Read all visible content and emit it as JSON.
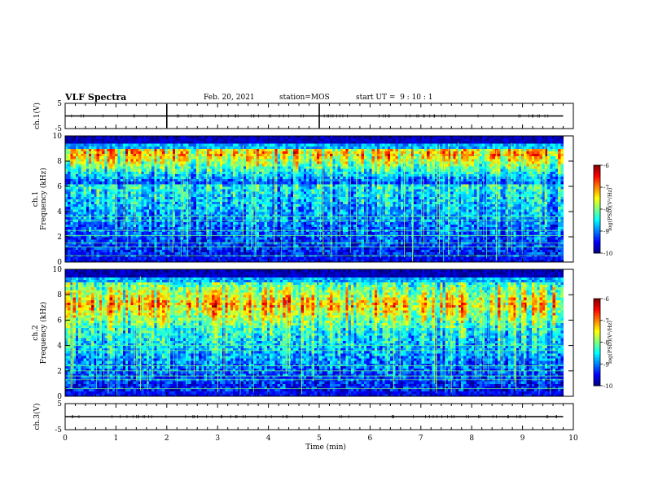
{
  "header": {
    "title": "VLF Spectra",
    "date": "Feb. 20, 2021",
    "station": "station=MOS",
    "start": "start UT =  9 : 10 : 1"
  },
  "chart_data": [
    {
      "type": "line",
      "panel": "ch1-waveform",
      "ylabel": "ch.1(V)",
      "ylim": [
        -5,
        5
      ],
      "yticks": [
        5,
        -5
      ],
      "xlim": [
        0,
        10
      ],
      "series": [
        {
          "x": [
            0,
            9.8
          ],
          "values": [
            0,
            0
          ]
        }
      ],
      "spikes_x": [
        2.0,
        5.0
      ]
    },
    {
      "type": "heatmap",
      "panel": "ch1-spectrogram",
      "ylabel": "Frequency (kHz)",
      "channel_label": "ch.1",
      "ylim": [
        0,
        10
      ],
      "yticks": [
        0,
        2,
        4,
        6,
        8,
        10
      ],
      "xlim": [
        0,
        10
      ],
      "data_end_x": 9.8,
      "band_khz": [
        6.3,
        9.0
      ],
      "peak_khz": 8.6,
      "lines_khz": [
        0.5,
        1.2,
        1.5,
        2.1,
        2.5,
        3.3,
        3.6
      ],
      "colorbar": {
        "label": "log(PSD)(V²/Hz)",
        "min": -10,
        "max": -6,
        "ticks": [
          -6,
          -7,
          -8,
          -9,
          -10
        ]
      }
    },
    {
      "type": "heatmap",
      "panel": "ch2-spectrogram",
      "ylabel": "Frequency (kHz)",
      "channel_label": "ch.2",
      "ylim": [
        0,
        10
      ],
      "yticks": [
        0,
        2,
        4,
        6,
        8,
        10
      ],
      "xlim": [
        0,
        10
      ],
      "data_end_x": 9.8,
      "band_khz": [
        5.0,
        9.0
      ],
      "peak_khz": 7.2,
      "lines_khz": [
        0.6,
        1.3,
        1.6,
        2.0,
        2.4,
        3.6,
        4.0
      ],
      "colorbar": {
        "label": "log(PSD)(V²/Hz)",
        "min": -10,
        "max": -6,
        "ticks": [
          -6,
          -7,
          -8,
          -9,
          -10
        ]
      }
    },
    {
      "type": "line",
      "panel": "ch3-waveform",
      "ylabel": "ch.3(V)",
      "ylim": [
        -5,
        5
      ],
      "yticks": [
        5,
        -5
      ],
      "xlim": [
        0,
        10
      ],
      "xlabel": "Time (min)",
      "xticks": [
        0,
        1,
        2,
        3,
        4,
        5,
        6,
        7,
        8,
        9,
        10
      ],
      "series": [
        {
          "x": [
            0,
            9.8
          ],
          "values": [
            0,
            0
          ]
        }
      ]
    }
  ]
}
